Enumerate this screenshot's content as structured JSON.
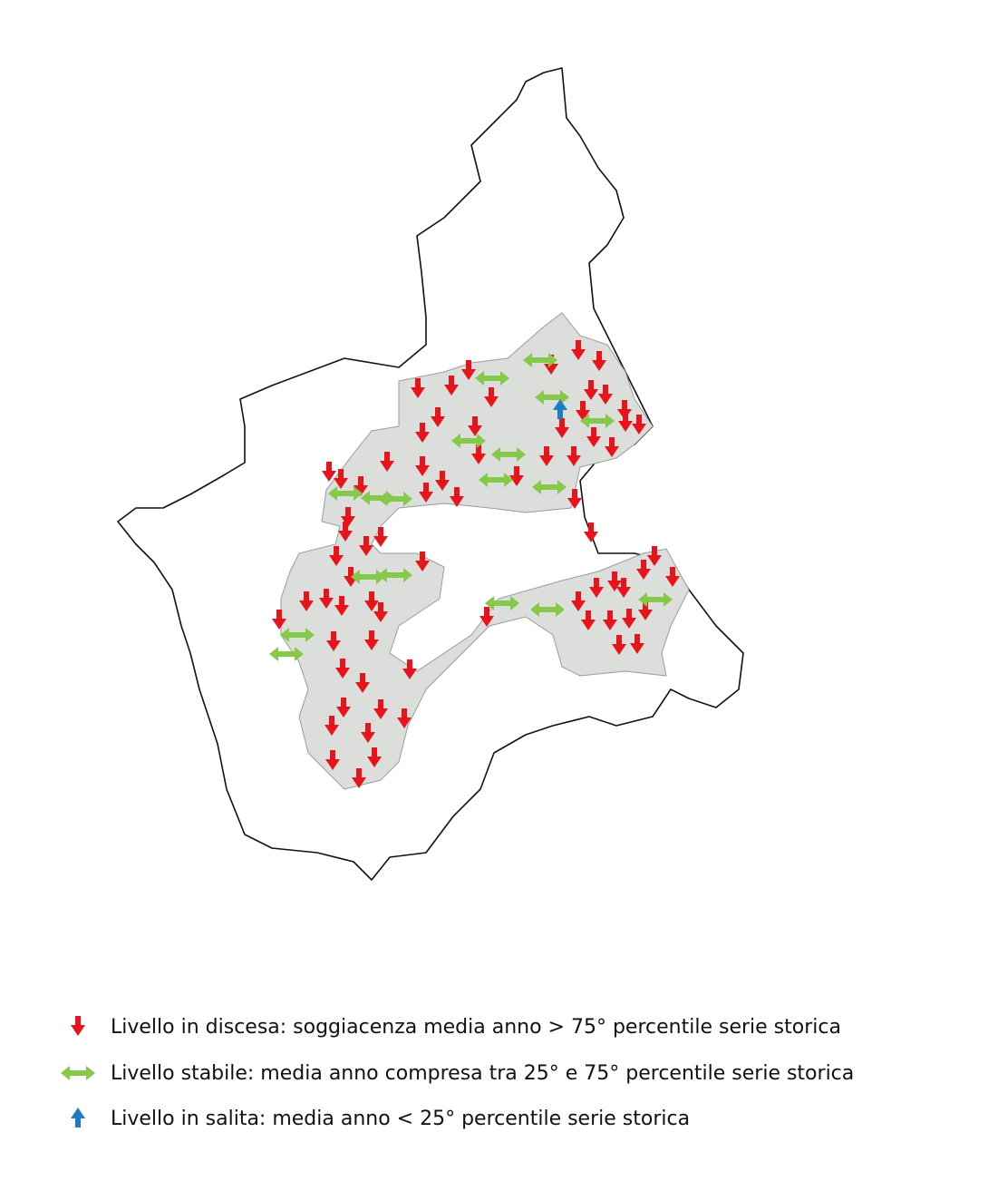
{
  "legend": {
    "items": [
      {
        "label": "Livello in discesa: soggiacenza media anno > 75° percentile serie storica"
      },
      {
        "label": "Livello stabile: media anno compresa tra 25° e 75° percentile serie storica"
      },
      {
        "label": "Livello in salita: media anno < 25° percentile serie storica"
      }
    ]
  }
}
